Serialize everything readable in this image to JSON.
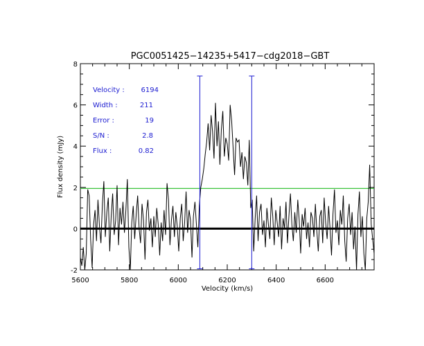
{
  "chart_data": {
    "type": "line",
    "title": "PGC0051425−14235+5417−cdg2018−GBT",
    "xlabel": "Velocity (km/s)",
    "ylabel": "Flux density (mJy)",
    "xlim": [
      5600,
      6800
    ],
    "ylim": [
      -2,
      8
    ],
    "xticks": [
      5600,
      5800,
      6000,
      6200,
      6400,
      6600
    ],
    "yticks": [
      -2,
      0,
      2,
      4,
      6,
      8
    ],
    "grid": false,
    "zero_line": 0,
    "threshold_line": {
      "y": 1.95,
      "color": "#22bb22"
    },
    "markers": {
      "x": [
        6088,
        6300
      ],
      "color": "#1a1ad0"
    },
    "annotations": [
      {
        "label": "Velocity :",
        "value": "6194"
      },
      {
        "label": "Width :",
        "value": "211"
      },
      {
        "label": "Error :",
        "value": "19"
      },
      {
        "label": "S/N :",
        "value": "2.8"
      },
      {
        "label": "Flux :",
        "value": "0.82"
      }
    ],
    "series": [
      {
        "name": "spectrum",
        "x": [
          5600,
          5606,
          5612,
          5618,
          5624,
          5630,
          5636,
          5642,
          5648,
          5654,
          5660,
          5666,
          5672,
          5678,
          5684,
          5690,
          5696,
          5702,
          5708,
          5714,
          5720,
          5726,
          5732,
          5738,
          5744,
          5750,
          5756,
          5762,
          5768,
          5774,
          5780,
          5786,
          5792,
          5798,
          5804,
          5810,
          5816,
          5822,
          5828,
          5834,
          5840,
          5846,
          5852,
          5858,
          5864,
          5870,
          5876,
          5882,
          5888,
          5894,
          5900,
          5906,
          5912,
          5918,
          5924,
          5930,
          5936,
          5942,
          5948,
          5954,
          5960,
          5966,
          5972,
          5978,
          5984,
          5990,
          5996,
          6002,
          6008,
          6014,
          6020,
          6026,
          6032,
          6038,
          6044,
          6050,
          6056,
          6062,
          6068,
          6074,
          6080,
          6086,
          6092,
          6098,
          6104,
          6110,
          6116,
          6122,
          6128,
          6134,
          6140,
          6146,
          6152,
          6158,
          6164,
          6170,
          6176,
          6182,
          6188,
          6194,
          6200,
          6206,
          6212,
          6218,
          6224,
          6230,
          6236,
          6242,
          6248,
          6254,
          6260,
          6266,
          6272,
          6278,
          6284,
          6290,
          6296,
          6302,
          6308,
          6314,
          6320,
          6326,
          6332,
          6338,
          6344,
          6350,
          6356,
          6362,
          6368,
          6374,
          6380,
          6386,
          6392,
          6398,
          6404,
          6410,
          6416,
          6422,
          6428,
          6434,
          6440,
          6446,
          6452,
          6458,
          6464,
          6470,
          6476,
          6482,
          6488,
          6494,
          6500,
          6506,
          6512,
          6518,
          6524,
          6530,
          6536,
          6542,
          6548,
          6554,
          6560,
          6566,
          6572,
          6578,
          6584,
          6590,
          6596,
          6602,
          6608,
          6614,
          6620,
          6626,
          6632,
          6638,
          6644,
          6650,
          6656,
          6662,
          6668,
          6674,
          6680,
          6686,
          6692,
          6698,
          6704,
          6710,
          6716,
          6722,
          6728,
          6734,
          6740,
          6746,
          6752,
          6758,
          6764,
          6770,
          6776,
          6782,
          6788,
          6794,
          6800
        ],
        "y": [
          -1.4,
          -1.8,
          -0.9,
          -2.0,
          -1.2,
          1.9,
          1.6,
          -0.5,
          -1.9,
          0.2,
          0.9,
          -0.6,
          1.4,
          0.1,
          -0.7,
          1.2,
          2.3,
          -0.4,
          0.8,
          1.5,
          -1.1,
          0.6,
          1.7,
          -0.3,
          0.4,
          2.1,
          -0.8,
          1.0,
          0.2,
          1.3,
          -0.2,
          0.9,
          2.4,
          -0.9,
          -2.0,
          0.3,
          1.1,
          -0.5,
          0.7,
          1.6,
          0.0,
          -0.7,
          1.2,
          0.4,
          -1.5,
          0.8,
          1.4,
          -0.1,
          0.5,
          -0.9,
          0.6,
          -0.4,
          1.0,
          0.2,
          -1.3,
          0.3,
          -0.6,
          0.9,
          -0.3,
          2.2,
          1.4,
          -0.8,
          0.4,
          1.1,
          -0.4,
          0.8,
          0.1,
          -1.1,
          0.5,
          1.2,
          -0.6,
          0.3,
          1.8,
          -0.2,
          0.9,
          0.4,
          -1.4,
          0.6,
          1.3,
          0.2,
          -0.9,
          1.1,
          2.0,
          2.4,
          2.9,
          3.6,
          4.2,
          5.1,
          3.8,
          5.5,
          4.7,
          3.4,
          6.1,
          4.0,
          5.2,
          3.1,
          4.8,
          5.7,
          3.5,
          4.4,
          4.1,
          3.3,
          6.0,
          5.2,
          3.9,
          2.6,
          4.4,
          4.2,
          4.3,
          3.0,
          3.7,
          2.4,
          3.5,
          3.2,
          2.1,
          4.3,
          1.0,
          1.4,
          -1.1,
          0.5,
          1.6,
          -0.6,
          0.8,
          1.2,
          -0.3,
          0.4,
          -0.9,
          1.0,
          0.2,
          -0.5,
          1.5,
          0.6,
          -0.8,
          0.9,
          0.3,
          -0.4,
          1.1,
          -1.0,
          0.5,
          0.0,
          1.3,
          -0.7,
          0.6,
          1.7,
          0.2,
          -0.6,
          0.8,
          -0.2,
          1.4,
          0.4,
          -1.2,
          0.7,
          0.1,
          1.0,
          -0.5,
          0.3,
          -0.9,
          0.8,
          0.5,
          -0.4,
          1.2,
          -0.1,
          -1.1,
          0.6,
          0.9,
          -0.7,
          1.5,
          0.3,
          -0.5,
          1.1,
          0.0,
          -1.3,
          0.7,
          1.9,
          -0.2,
          0.4,
          -0.8,
          0.9,
          0.2,
          1.6,
          -0.6,
          -1.6,
          0.5,
          1.2,
          -0.3,
          0.8,
          -1.0,
          0.1,
          -2.0,
          0.7,
          1.8,
          -0.4,
          0.6,
          -1.2,
          -2.0,
          0.5,
          1.3,
          3.1,
          0.2,
          -0.5,
          -1.2
        ]
      }
    ]
  }
}
